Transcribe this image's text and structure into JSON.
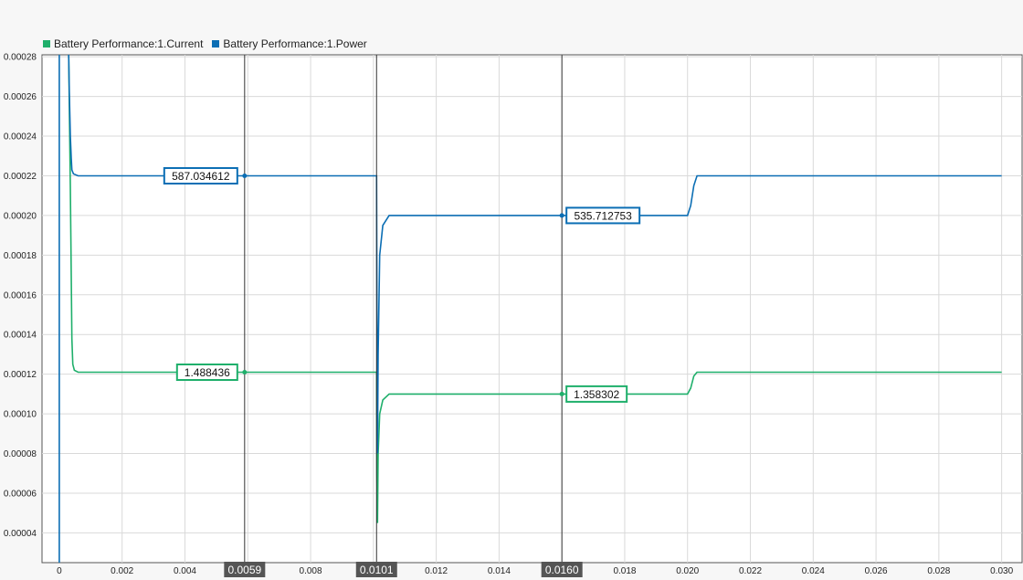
{
  "legend": [
    {
      "name": "Battery Performance:1.Current",
      "color": "#1faf6b"
    },
    {
      "name": "Battery Performance:1.Power",
      "color": "#0b6eb4"
    }
  ],
  "chart_data": {
    "type": "line",
    "xlim": [
      -0.00055,
      0.03065
    ],
    "ylim": [
      2.5e-05,
      0.000281
    ],
    "x_ticks": [
      0,
      0.002,
      0.004,
      0.006,
      0.008,
      0.01,
      0.012,
      0.014,
      0.016,
      0.018,
      0.02,
      0.022,
      0.024,
      0.026,
      0.028,
      0.03
    ],
    "x_tick_labels": [
      "0",
      "0.002",
      "0.004",
      "0.006",
      "0.008",
      "0.010",
      "0.012",
      "0.014",
      "0.016",
      "0.018",
      "0.020",
      "0.022",
      "0.024",
      "0.026",
      "0.028",
      "0.030"
    ],
    "y_ticks": [
      4e-05,
      6e-05,
      8e-05,
      0.0001,
      0.00012,
      0.00014,
      0.00016,
      0.00018,
      0.0002,
      0.00022,
      0.00024,
      0.00026,
      0.00028
    ],
    "y_tick_labels": [
      "0.00004",
      "0.00006",
      "0.00008",
      "0.00010",
      "0.00012",
      "0.00014",
      "0.00016",
      "0.00018",
      "0.00020",
      "0.00022",
      "0.00024",
      "0.00026",
      "0.00028"
    ],
    "grid": true,
    "legend_position": "top-left",
    "series": [
      {
        "name": "Battery Performance:1.Current",
        "color": "#1faf6b",
        "points": [
          [
            0.0003,
            0.000281
          ],
          [
            0.00032,
            0.000255
          ],
          [
            0.00035,
            0.000215
          ],
          [
            0.00038,
            0.00017
          ],
          [
            0.0004,
            0.000138
          ],
          [
            0.00043,
            0.000125
          ],
          [
            0.00048,
            0.000122
          ],
          [
            0.0006,
            0.000121
          ],
          [
            0.0101,
            0.000121
          ],
          [
            0.01011,
            7e-05
          ],
          [
            0.01013,
            4.5e-05
          ],
          [
            0.01015,
            8e-05
          ],
          [
            0.0102,
            0.0001
          ],
          [
            0.0103,
            0.000107
          ],
          [
            0.0105,
            0.00011
          ],
          [
            0.0108,
            0.00011
          ],
          [
            0.02,
            0.00011
          ],
          [
            0.0201,
            0.000113
          ],
          [
            0.0202,
            0.000119
          ],
          [
            0.0203,
            0.000121
          ],
          [
            0.03,
            0.000121
          ]
        ]
      },
      {
        "name": "Battery Performance:1.Power",
        "color": "#0b6eb4",
        "points": [
          [
            0.0003,
            0.000281
          ],
          [
            0.00032,
            0.000262
          ],
          [
            0.00035,
            0.00024
          ],
          [
            0.00038,
            0.000229
          ],
          [
            0.0004,
            0.000223
          ],
          [
            0.00045,
            0.000221
          ],
          [
            0.0006,
            0.00022
          ],
          [
            0.0101,
            0.00022
          ],
          [
            0.01011,
            0.00017
          ],
          [
            0.01013,
            8e-05
          ],
          [
            0.01015,
            0.00013
          ],
          [
            0.0102,
            0.00018
          ],
          [
            0.0103,
            0.000195
          ],
          [
            0.0105,
            0.0002
          ],
          [
            0.0108,
            0.0002
          ],
          [
            0.02,
            0.0002
          ],
          [
            0.0201,
            0.000205
          ],
          [
            0.0202,
            0.000215
          ],
          [
            0.0203,
            0.00022
          ],
          [
            0.03,
            0.00022
          ]
        ]
      }
    ],
    "cursors": [
      {
        "x": 0.0059,
        "label": "0.0059"
      },
      {
        "x": 0.0101,
        "label": "0.0101"
      },
      {
        "x": 0.016,
        "label": "0.0160"
      }
    ],
    "cursor_values": [
      {
        "text": "587.034612",
        "series": 1,
        "x": 0.0059,
        "y": 0.00022,
        "side": "left"
      },
      {
        "text": "1.488436",
        "series": 0,
        "x": 0.0059,
        "y": 0.000121,
        "side": "left"
      },
      {
        "text": "535.712753",
        "series": 1,
        "x": 0.016,
        "y": 0.0002,
        "side": "right"
      },
      {
        "text": "1.358302",
        "series": 0,
        "x": 0.016,
        "y": 0.00011,
        "side": "right"
      }
    ]
  }
}
